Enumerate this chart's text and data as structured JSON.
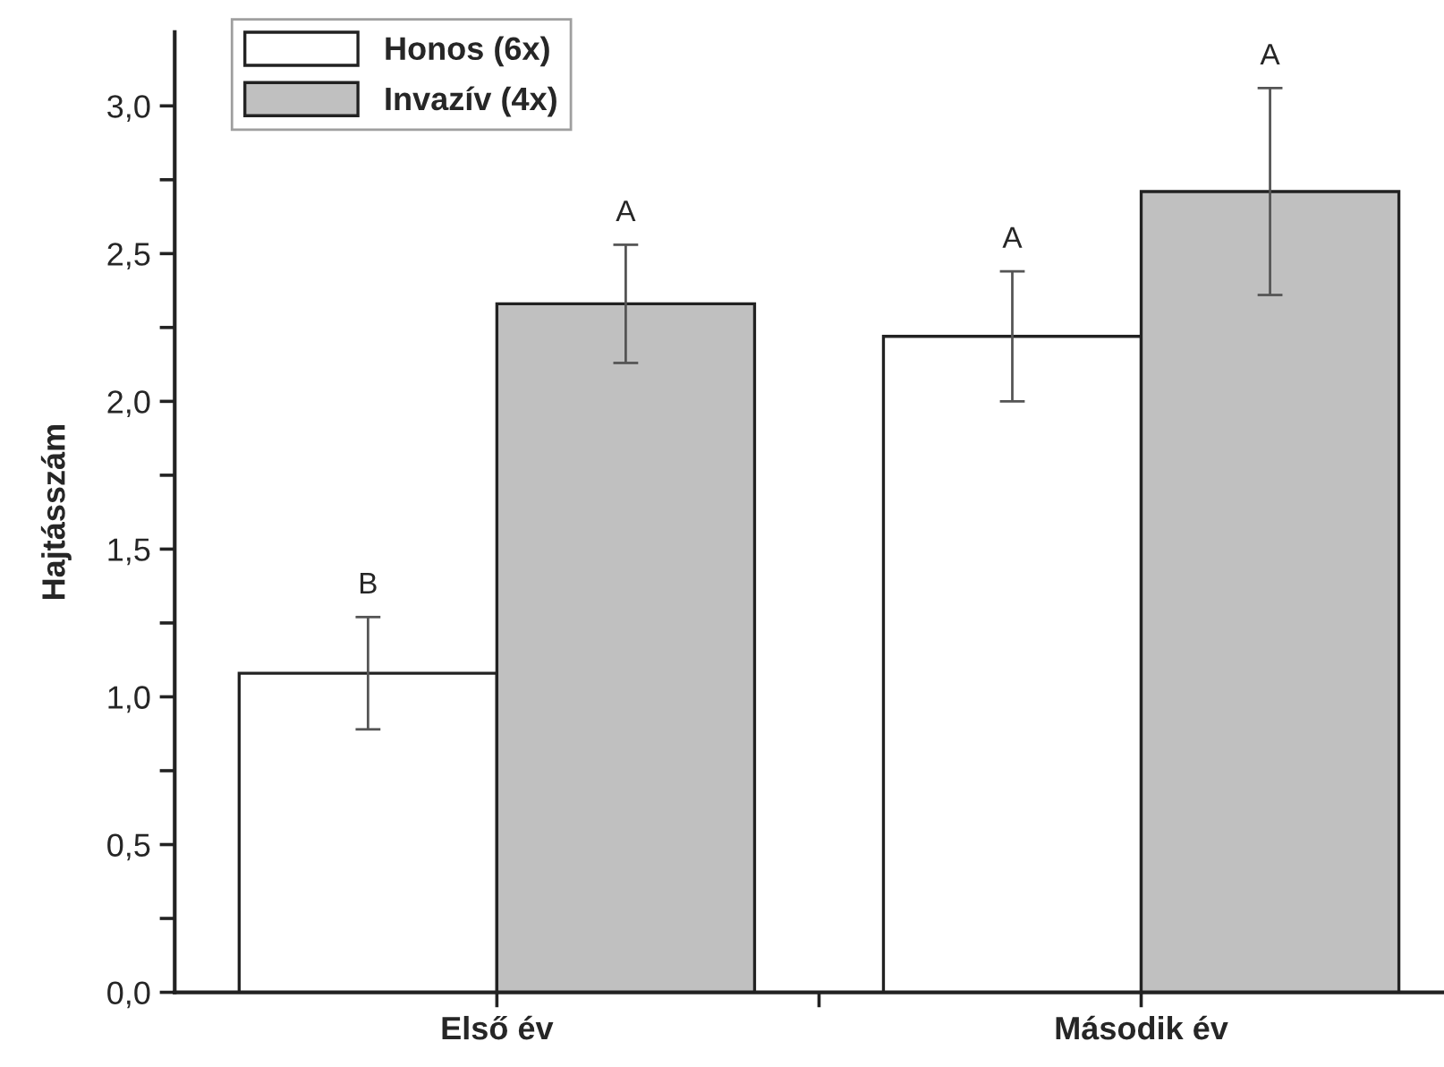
{
  "chart_data": {
    "type": "bar",
    "ylabel": "Hajtásszám",
    "categories": [
      "Első év",
      "Második év"
    ],
    "series": [
      {
        "name": "Honos (6x)",
        "color": "#ffffff",
        "values": [
          1.08,
          2.22
        ],
        "errors": [
          0.19,
          0.22
        ]
      },
      {
        "name": "Invazív (4x)",
        "color": "#c0c0c0",
        "values": [
          2.33,
          2.71
        ],
        "errors": [
          0.2,
          0.35
        ]
      }
    ],
    "annotations": [
      "B",
      "A",
      "A",
      "A"
    ],
    "ylim": [
      0,
      3.25
    ],
    "yticks": [
      {
        "value": 0,
        "label": "0,0"
      },
      {
        "value": 0.25,
        "label": null
      },
      {
        "value": 0.5,
        "label": "0,5"
      },
      {
        "value": 0.75,
        "label": null
      },
      {
        "value": 1.0,
        "label": "1,0"
      },
      {
        "value": 1.25,
        "label": null
      },
      {
        "value": 1.5,
        "label": "1,5"
      },
      {
        "value": 1.75,
        "label": null
      },
      {
        "value": 2.0,
        "label": "2,0"
      },
      {
        "value": 2.25,
        "label": null
      },
      {
        "value": 2.5,
        "label": "2,5"
      },
      {
        "value": 2.75,
        "label": null
      },
      {
        "value": 3.0,
        "label": "3,0"
      }
    ],
    "grid": false,
    "legend": "top left"
  }
}
